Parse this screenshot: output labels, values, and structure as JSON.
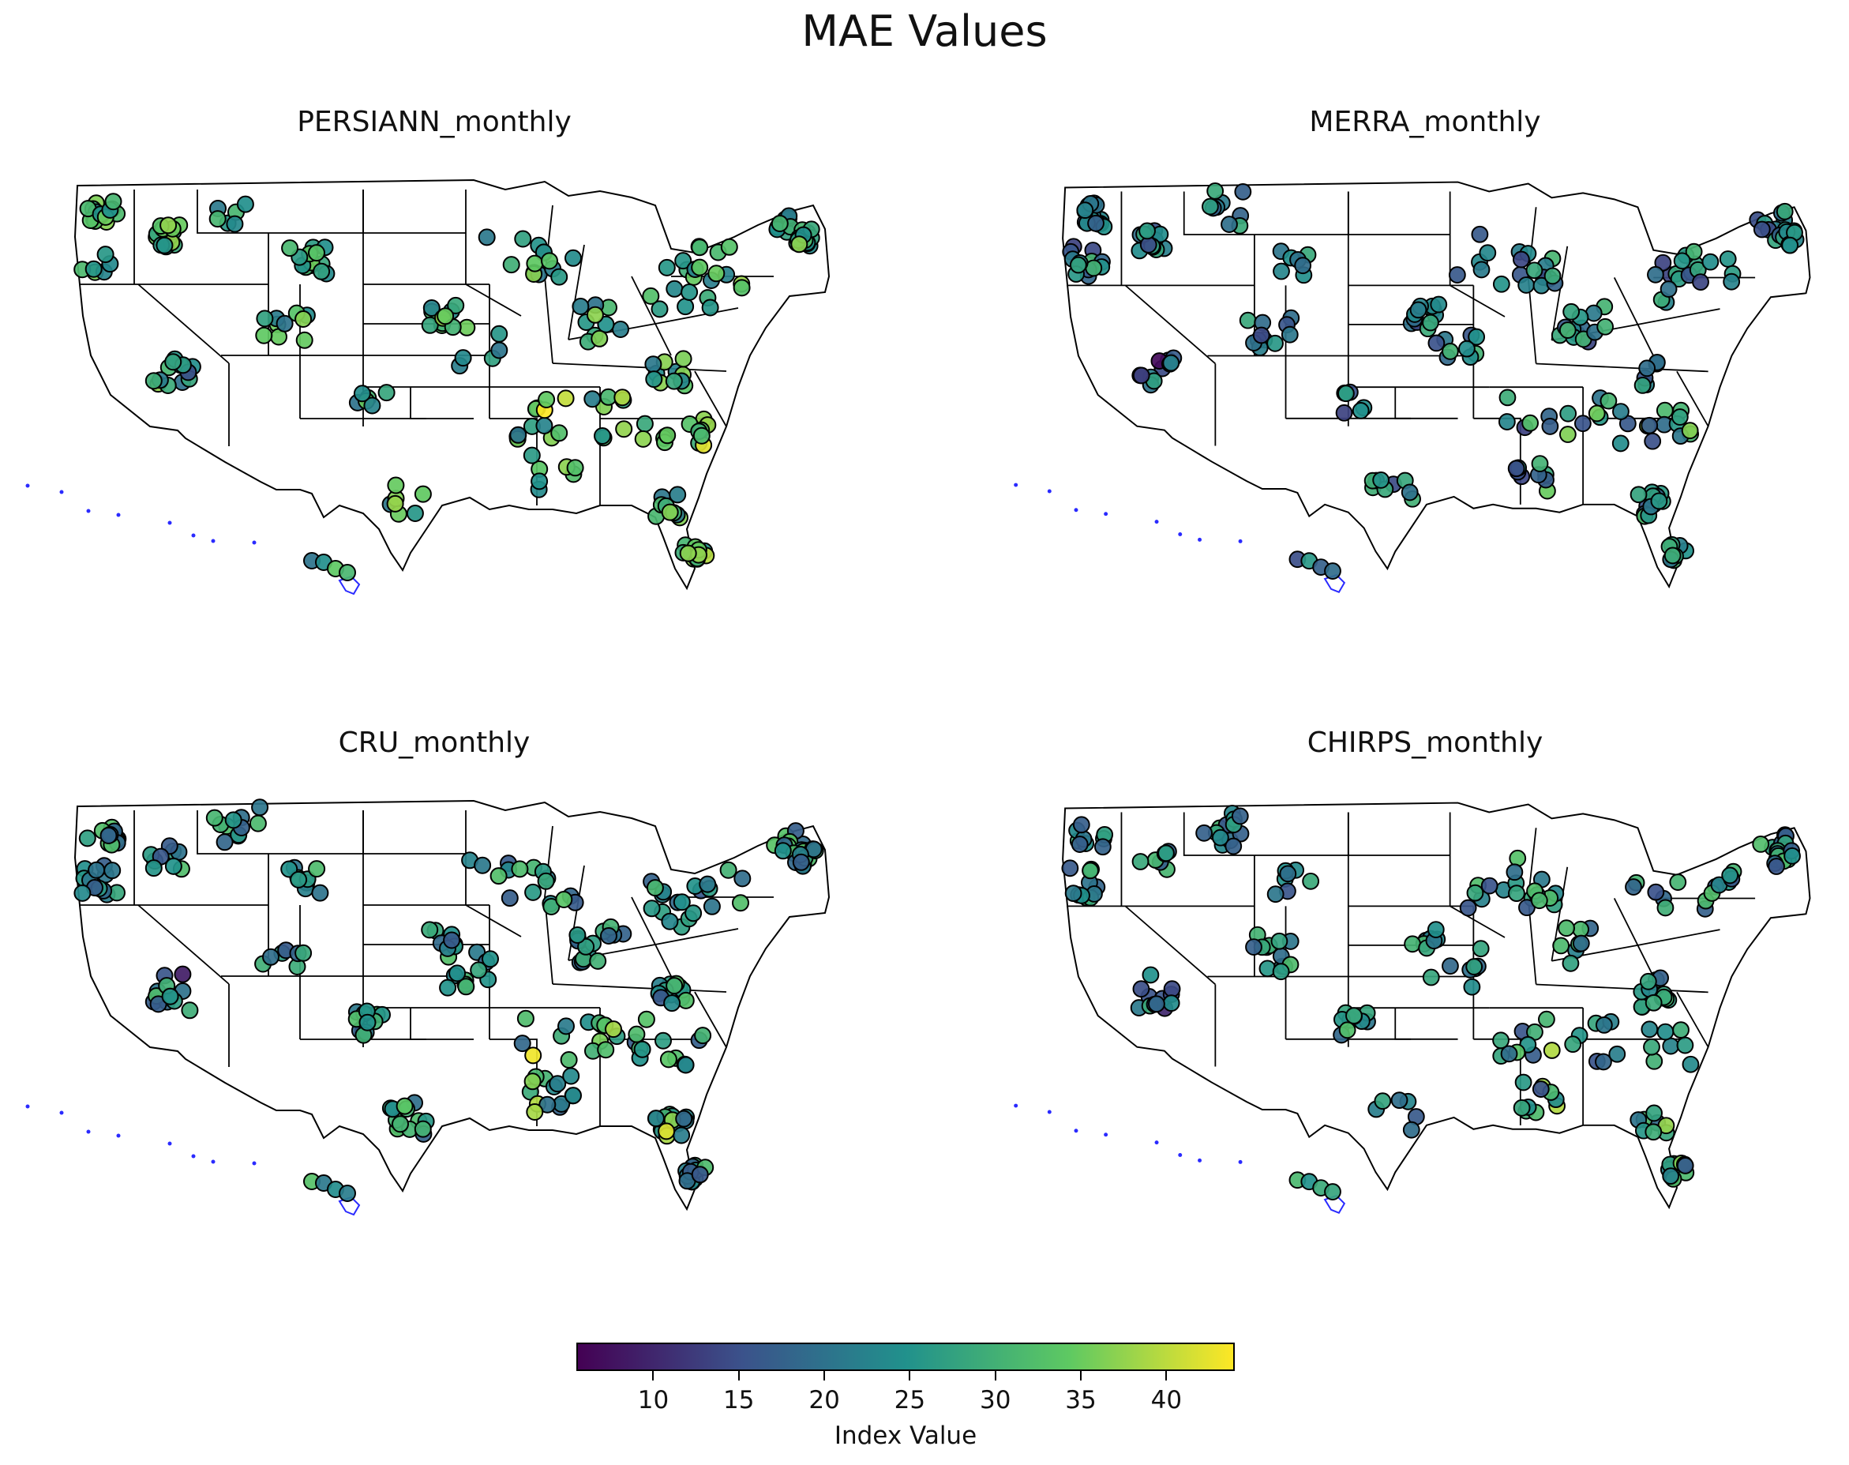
{
  "title": "MAE Values",
  "panels": [
    {
      "id": "persiann",
      "title": "PERSIANN_monthly",
      "seed": 11,
      "bias": 4
    },
    {
      "id": "merra",
      "title": "MERRA_monthly",
      "seed": 23,
      "bias": -3
    },
    {
      "id": "cru",
      "title": "CRU_monthly",
      "seed": 37,
      "bias": 0
    },
    {
      "id": "chirps",
      "title": "CHIRPS_monthly",
      "seed": 51,
      "bias": -1
    }
  ],
  "colorbar": {
    "label": "Index Value",
    "min": 5.5,
    "max": 44,
    "ticks": [
      10,
      15,
      20,
      25,
      30,
      35,
      40
    ],
    "colors": [
      "#440154",
      "#3b528b",
      "#21918c",
      "#5ec962",
      "#fde725"
    ]
  },
  "colors": {
    "hawaii_outline": "#2a2aff",
    "state_lines": "#000000"
  }
}
